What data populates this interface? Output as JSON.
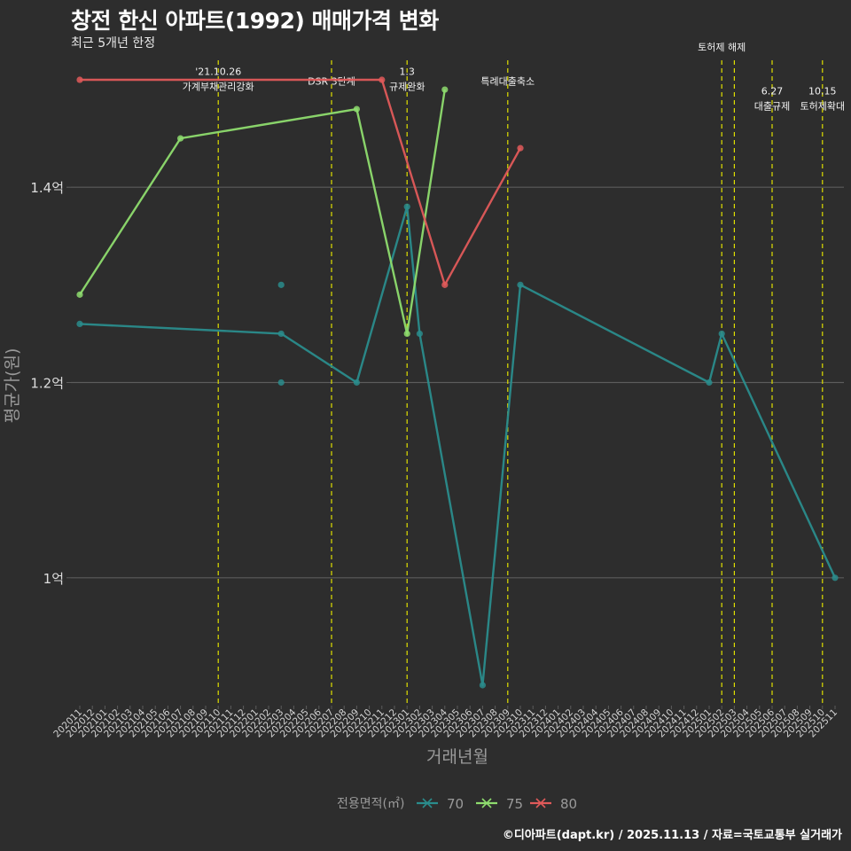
{
  "chart_data": {
    "type": "line",
    "title": "창전 한신 아파트(1992) 매매가격 변화",
    "subtitle": "최근 5개년 한정",
    "xlabel": "거래년월",
    "ylabel": "평균가(원)",
    "ylim": [
      0.87,
      1.53
    ],
    "yticks": [
      {
        "value": 1.0,
        "label": "1억"
      },
      {
        "value": 1.2,
        "label": "1.2억"
      },
      {
        "value": 1.4,
        "label": "1.4억"
      }
    ],
    "categories": [
      "202011",
      "202012",
      "202101",
      "202102",
      "202103",
      "202104",
      "202105",
      "202106",
      "202107",
      "202108",
      "202109",
      "202110",
      "202111",
      "202112",
      "202201",
      "202202",
      "202203",
      "202204",
      "202205",
      "202206",
      "202207",
      "202208",
      "202209",
      "202210",
      "202211",
      "202212",
      "202301",
      "202302",
      "202303",
      "202304",
      "202305",
      "202306",
      "202307",
      "202308",
      "202309",
      "202310",
      "202311",
      "202312",
      "202401",
      "202402",
      "202403",
      "202404",
      "202405",
      "202406",
      "202407",
      "202408",
      "202409",
      "202410",
      "202411",
      "202412",
      "202501",
      "202502",
      "202503",
      "202504",
      "202505",
      "202506",
      "202507",
      "202508",
      "202509",
      "202510",
      "202511"
    ],
    "legend_title": "전용면적(㎡)",
    "series": [
      {
        "name": "70",
        "color": "#2a8c8c",
        "line": [
          [
            "202011",
            1.26
          ],
          [
            "202203",
            1.25
          ],
          [
            "202209",
            1.2
          ],
          [
            "202301",
            1.38
          ],
          [
            "202302",
            1.25
          ],
          [
            "202307",
            0.89
          ],
          [
            "202310",
            1.3
          ],
          [
            "202501",
            1.2
          ],
          [
            "202502",
            1.25
          ],
          [
            "202511",
            1.0
          ]
        ],
        "extra_points": [
          [
            "202203",
            1.3
          ],
          [
            "202203",
            1.2
          ]
        ]
      },
      {
        "name": "75",
        "color": "#8edc6e",
        "line": [
          [
            "202011",
            1.29
          ],
          [
            "202107",
            1.45
          ],
          [
            "202209",
            1.48
          ],
          [
            "202301",
            1.25
          ],
          [
            "202304",
            1.5
          ]
        ],
        "extra_points": []
      },
      {
        "name": "80",
        "color": "#e05a5a",
        "line": [
          [
            "202011",
            1.51
          ],
          [
            "202211",
            1.51
          ],
          [
            "202304",
            1.3
          ],
          [
            "202310",
            1.44
          ]
        ],
        "extra_points": []
      }
    ],
    "annotations": [
      {
        "x": "202110",
        "lines": [
          "'21.10.26",
          "가계부채관리강화"
        ],
        "label_y": 1.515
      },
      {
        "x": "202207",
        "lines": [
          "DSR 3단계"
        ],
        "label_y": 1.505
      },
      {
        "x": "202301",
        "lines": [
          "1.3",
          "규제완화"
        ],
        "label_y": 1.515
      },
      {
        "x": "202309",
        "lines": [
          "특례대출축소"
        ],
        "label_y": 1.505
      },
      {
        "x": "202502",
        "lines": [
          "토허제 해제"
        ],
        "label_y": 1.54
      },
      {
        "x": "202503",
        "lines": [],
        "label_y": 1.54
      },
      {
        "x": "202506",
        "lines": [
          "6.27",
          "대출규제"
        ],
        "label_y": 1.495
      },
      {
        "x": "202510",
        "lines": [
          "10.15",
          "토허제확대"
        ],
        "label_y": 1.495
      }
    ]
  },
  "footer": "©디아파트(dapt.kr) / 2025.11.13 / 자료=국토교통부 실거래가"
}
